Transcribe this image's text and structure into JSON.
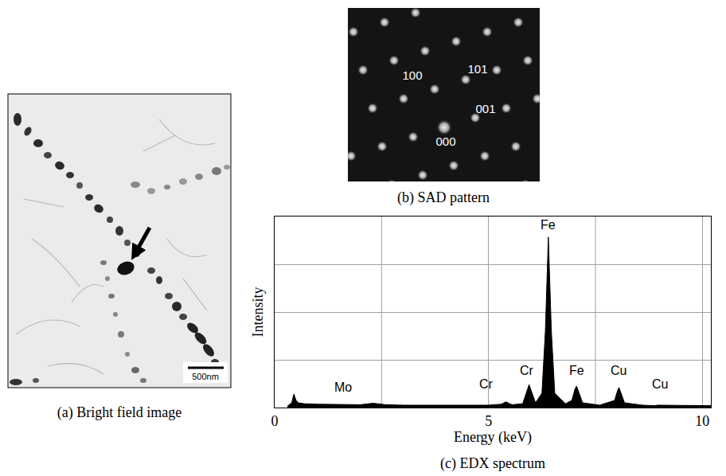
{
  "panels": [
    {
      "caption": "(a) Bright field image",
      "scale_bar": "500nm"
    },
    {
      "caption": "(b) SAD pattern",
      "spot_labels": [
        "100",
        "101",
        "000",
        "001"
      ]
    }
  ],
  "chart_data": {
    "type": "area",
    "caption": "(c) EDX spectrum",
    "x_label": "Energy (keV)",
    "y_label": "Intensity",
    "x": [
      0.3,
      0.4,
      0.45,
      0.5,
      0.55,
      0.7,
      1.0,
      1.5,
      2.0,
      2.2,
      2.3,
      2.4,
      2.6,
      3.0,
      4.0,
      5.0,
      5.3,
      5.35,
      5.41,
      5.47,
      5.55,
      5.8,
      5.88,
      5.95,
      6.02,
      6.1,
      6.25,
      6.33,
      6.4,
      6.47,
      6.55,
      6.8,
      6.95,
      7.02,
      7.06,
      7.12,
      7.2,
      7.6,
      7.95,
      8.02,
      8.05,
      8.1,
      8.18,
      8.6,
      8.85,
      8.9,
      8.95,
      9.0,
      9.05,
      9.2,
      10.0,
      10.2
    ],
    "values": [
      0.03,
      0.1,
      0.28,
      0.15,
      0.1,
      0.08,
      0.07,
      0.06,
      0.06,
      0.08,
      0.09,
      0.08,
      0.06,
      0.05,
      0.05,
      0.05,
      0.07,
      0.09,
      0.12,
      0.09,
      0.06,
      0.08,
      0.3,
      0.48,
      0.3,
      0.1,
      0.3,
      1.6,
      3.57,
      1.6,
      0.3,
      0.08,
      0.15,
      0.38,
      0.45,
      0.3,
      0.1,
      0.05,
      0.15,
      0.36,
      0.42,
      0.3,
      0.1,
      0.05,
      0.04,
      0.04,
      0.05,
      0.05,
      0.04,
      0.04,
      0.04,
      0.04
    ],
    "color": "#000000",
    "xlim": [
      0,
      10.2
    ],
    "ylim": [
      0,
      4
    ],
    "xticks": [
      0,
      5,
      10
    ],
    "yticks": [
      0,
      1,
      2,
      3,
      4
    ],
    "grid": true,
    "tick_labels": "x",
    "annotations": [
      {
        "text": "Mo",
        "x": 1.6,
        "y": 0.42
      },
      {
        "text": "Cr",
        "x": 4.95,
        "y": 0.5
      },
      {
        "text": "Cr",
        "x": 5.9,
        "y": 0.77
      },
      {
        "text": "Fe",
        "x": 6.4,
        "y": 3.82
      },
      {
        "text": "Fe",
        "x": 7.06,
        "y": 0.77
      },
      {
        "text": "Cu",
        "x": 8.05,
        "y": 0.77
      },
      {
        "text": "Cu",
        "x": 9.0,
        "y": 0.5
      }
    ]
  }
}
